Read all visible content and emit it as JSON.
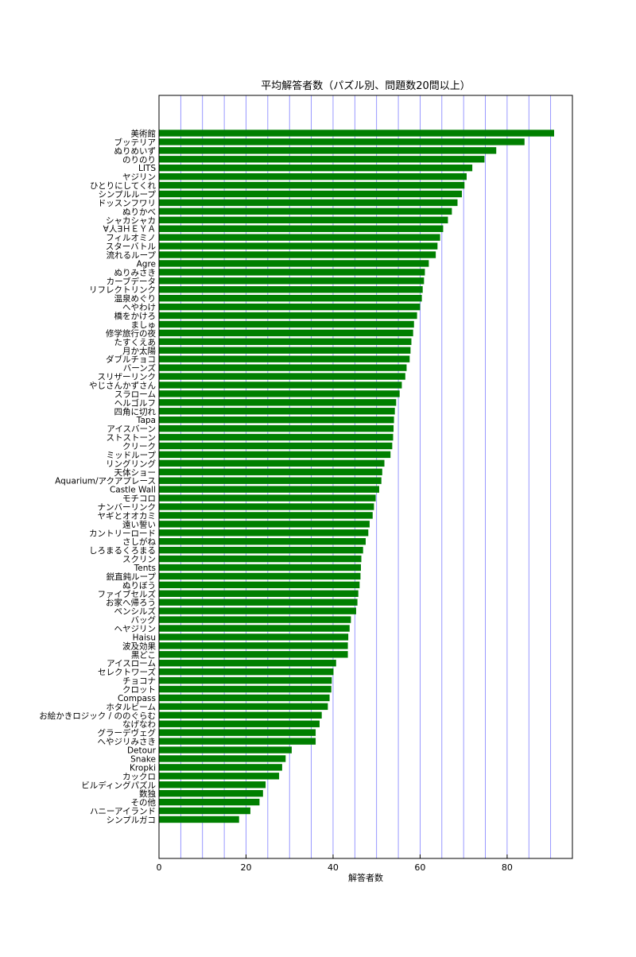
{
  "chart_data": {
    "type": "bar",
    "orientation": "horizontal",
    "title": "平均解答者数（パズル別、問題数20問以上）",
    "xlabel": "解答者数",
    "ylabel": "",
    "xlim": [
      0,
      95
    ],
    "xticks": [
      0,
      20,
      40,
      60,
      80
    ],
    "grid_x_step": 5,
    "grid": true,
    "bar_color": "#007f00",
    "grid_color": "#7f7fff",
    "categories": [
      "美術館",
      "ブッテリア",
      "ぬりめいず",
      "のりのり",
      "LITS",
      "ヤジリン",
      "ひとりにしてくれ",
      "シンプルループ",
      "ドッスンフワリ",
      "ぬりかべ",
      "シャカシャカ",
      "∀人∃ＨＥＹＡ",
      "フィルオミノ",
      "スターバトル",
      "流れるループ",
      "Agre",
      "ぬりみさき",
      "カーブデータ",
      "リフレクトリンク",
      "温泉めぐり",
      "へやわけ",
      "橋をかけろ",
      "ましゅ",
      "修学旅行の夜",
      "たすくえあ",
      "月か太陽",
      "ダブルチョコ",
      "バーンズ",
      "スリザーリンク",
      "やじさんかずさん",
      "スラローム",
      "ヘルゴルフ",
      "四角に切れ",
      "Tapa",
      "アイスバーン",
      "ストストーン",
      "クリーク",
      "ミッドループ",
      "リングリング",
      "天体ショー",
      "Aquarium/アクアプレース",
      "Castle Wall",
      "モチコロ",
      "ナンバーリンク",
      "ヤギとオオカミ",
      "遠い誓い",
      "カントリーロード",
      "さしがね",
      "しろまるくろまる",
      "スクリン",
      "Tents",
      "鋭直鈍ループ",
      "ぬりぼう",
      "ファイブセルズ",
      "お家へ帰ろう",
      "ペンシルズ",
      "バッグ",
      "ヘヤジリン",
      "Haisu",
      "波及効果",
      "黒どこ",
      "アイスローム",
      "セレクトワーズ",
      "チョコナ",
      "クロット",
      "Compass",
      "ホタルビーム",
      "お絵かきロジック / ののぐらむ",
      "なげなわ",
      "グラーデヴェグ",
      "へやジリみさき",
      "Detour",
      "Snake",
      "Kropki",
      "カックロ",
      "ビルディングパズル",
      "数独",
      "その他",
      "ハニーアイランド",
      "シンプルガコ"
    ],
    "values": [
      90.8,
      84.0,
      77.5,
      74.8,
      72.0,
      70.7,
      70.2,
      69.6,
      68.6,
      67.3,
      66.4,
      65.3,
      64.6,
      64.0,
      63.6,
      62.0,
      61.1,
      60.9,
      60.6,
      60.4,
      60.0,
      59.3,
      58.6,
      58.4,
      58.0,
      57.8,
      57.6,
      56.9,
      56.6,
      55.8,
      55.3,
      54.5,
      54.2,
      54.0,
      53.9,
      53.8,
      53.6,
      53.2,
      51.8,
      51.3,
      51.1,
      50.6,
      49.8,
      49.4,
      49.1,
      48.4,
      48.1,
      47.5,
      46.9,
      46.5,
      46.4,
      46.3,
      46.1,
      45.8,
      45.6,
      45.3,
      44.1,
      43.8,
      43.5,
      43.4,
      43.4,
      40.7,
      40.1,
      39.7,
      39.6,
      39.2,
      38.8,
      37.4,
      36.9,
      36.0,
      36.0,
      30.5,
      29.1,
      28.3,
      27.6,
      24.5,
      23.9,
      23.1,
      21.0,
      18.4
    ]
  }
}
